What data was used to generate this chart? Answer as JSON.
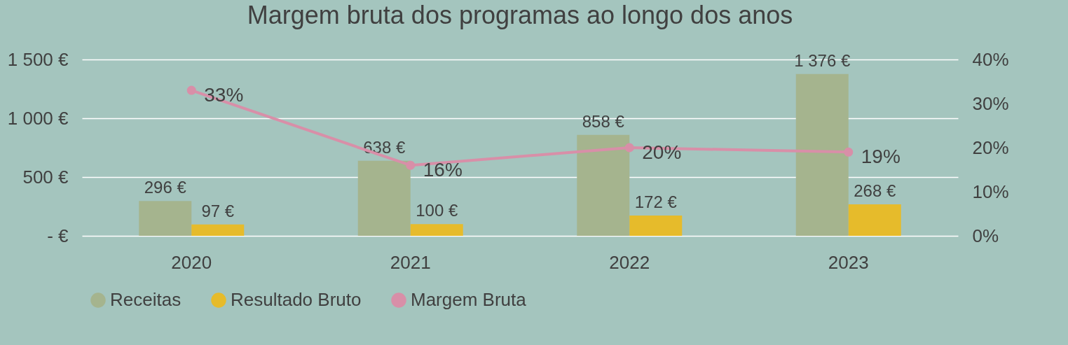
{
  "chart_data": {
    "type": "bar",
    "title": "Margem bruta dos programas ao longo dos anos",
    "categories": [
      "2020",
      "2021",
      "2022",
      "2023"
    ],
    "series": [
      {
        "name": "Receitas",
        "color": "#a5b48e",
        "values": [
          296,
          638,
          858,
          1376
        ],
        "value_labels": [
          "296 €",
          "638 €",
          "858 €",
          "1 376 €"
        ]
      },
      {
        "name": "Resultado Bruto",
        "color": "#e6bb2b",
        "values": [
          97,
          100,
          172,
          268
        ],
        "value_labels": [
          "97 €",
          "100 €",
          "172 €",
          "268 €"
        ]
      },
      {
        "name": "Margem Bruta",
        "type": "line",
        "axis": "y2",
        "marker": "circle",
        "color": "#d88fa8",
        "values": [
          33,
          16,
          20,
          19
        ],
        "value_labels": [
          "33%",
          "16%",
          "20%",
          "19%"
        ]
      }
    ],
    "ylim": [
      0,
      1500
    ],
    "yticks": [
      {
        "value": 0,
        "label": "-   €"
      },
      {
        "value": 500,
        "label": "500 €"
      },
      {
        "value": 1000,
        "label": "1 000 €"
      },
      {
        "value": 1500,
        "label": "1 500 €"
      }
    ],
    "y2lim": [
      0,
      40
    ],
    "y2ticks": [
      {
        "value": 0,
        "label": "0%"
      },
      {
        "value": 10,
        "label": "10%"
      },
      {
        "value": 20,
        "label": "20%"
      },
      {
        "value": 30,
        "label": "30%"
      },
      {
        "value": 40,
        "label": "40%"
      }
    ],
    "grid": "y",
    "legend": "bottom"
  }
}
